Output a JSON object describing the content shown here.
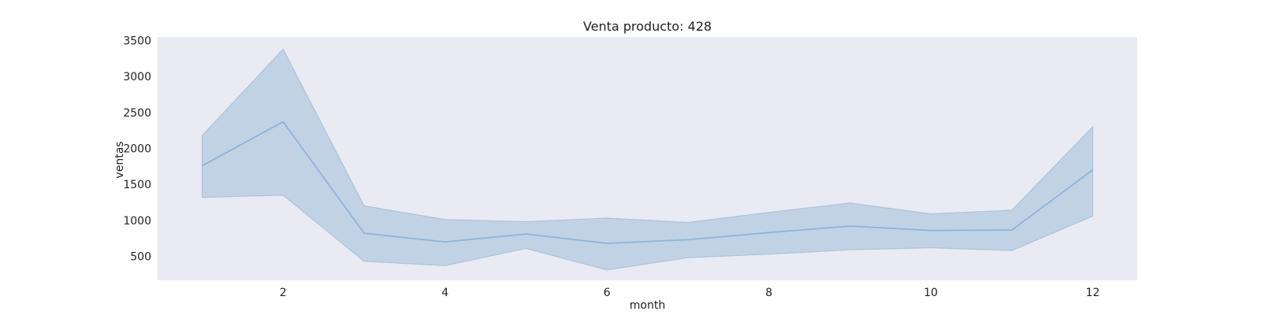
{
  "chart_data": {
    "type": "line",
    "title": "Venta producto: 428",
    "xlabel": "month",
    "ylabel": "ventas",
    "xlim": [
      0.45,
      12.55
    ],
    "ylim": [
      165,
      3550
    ],
    "xticks": [
      2,
      4,
      6,
      8,
      10,
      12
    ],
    "yticks": [
      500,
      1000,
      1500,
      2000,
      2500,
      3000,
      3500
    ],
    "grid": false,
    "colors": {
      "plot_background": "#eaeaf2",
      "line": "#8fb4d6",
      "band": "#b0c8e0",
      "band_edge": "#a9c4de"
    },
    "series": [
      {
        "x": [
          1,
          2,
          3,
          4,
          5,
          6,
          7,
          8,
          9,
          10,
          11,
          12
        ],
        "y": [
          1760,
          2370,
          820,
          700,
          810,
          680,
          730,
          830,
          920,
          860,
          865,
          1700
        ],
        "ci_lower": [
          1320,
          1350,
          430,
          370,
          610,
          310,
          480,
          530,
          590,
          620,
          580,
          1060
        ],
        "ci_upper": [
          2180,
          3380,
          1200,
          1010,
          980,
          1030,
          970,
          1110,
          1240,
          1090,
          1140,
          2300
        ]
      }
    ]
  }
}
